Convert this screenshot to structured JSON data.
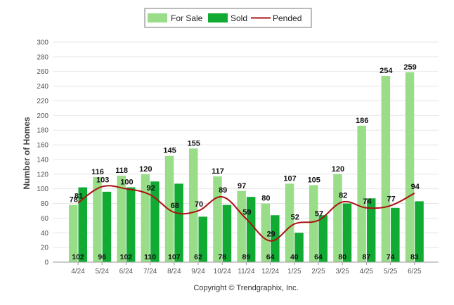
{
  "chart_data": {
    "type": "bar",
    "categories": [
      "4/24",
      "5/24",
      "6/24",
      "7/24",
      "8/24",
      "9/24",
      "10/24",
      "11/24",
      "12/24",
      "1/25",
      "2/25",
      "3/25",
      "4/25",
      "5/25",
      "6/25"
    ],
    "series": [
      {
        "name": "For Sale",
        "kind": "bar",
        "color": "#99dd88",
        "values": [
          78,
          116,
          118,
          120,
          145,
          155,
          117,
          97,
          80,
          107,
          105,
          120,
          186,
          254,
          259
        ]
      },
      {
        "name": "Sold",
        "kind": "bar",
        "color": "#11aa33",
        "values": [
          102,
          96,
          102,
          110,
          107,
          62,
          78,
          89,
          64,
          40,
          64,
          80,
          87,
          74,
          83
        ]
      },
      {
        "name": "Pended",
        "kind": "line",
        "color": "#aa1111",
        "values": [
          81,
          103,
          100,
          92,
          68,
          70,
          89,
          59,
          29,
          52,
          57,
          82,
          74,
          77,
          94
        ]
      }
    ],
    "ylabel": "Number of Homes",
    "xlabel": "",
    "ylim": [
      0,
      300
    ],
    "yticks": [
      0,
      20,
      40,
      60,
      80,
      100,
      120,
      140,
      160,
      180,
      200,
      220,
      240,
      260,
      280,
      300
    ],
    "grid": true,
    "legend": "top-center"
  },
  "footer": {
    "copyright": "Copyright © Trendgraphix, Inc."
  }
}
